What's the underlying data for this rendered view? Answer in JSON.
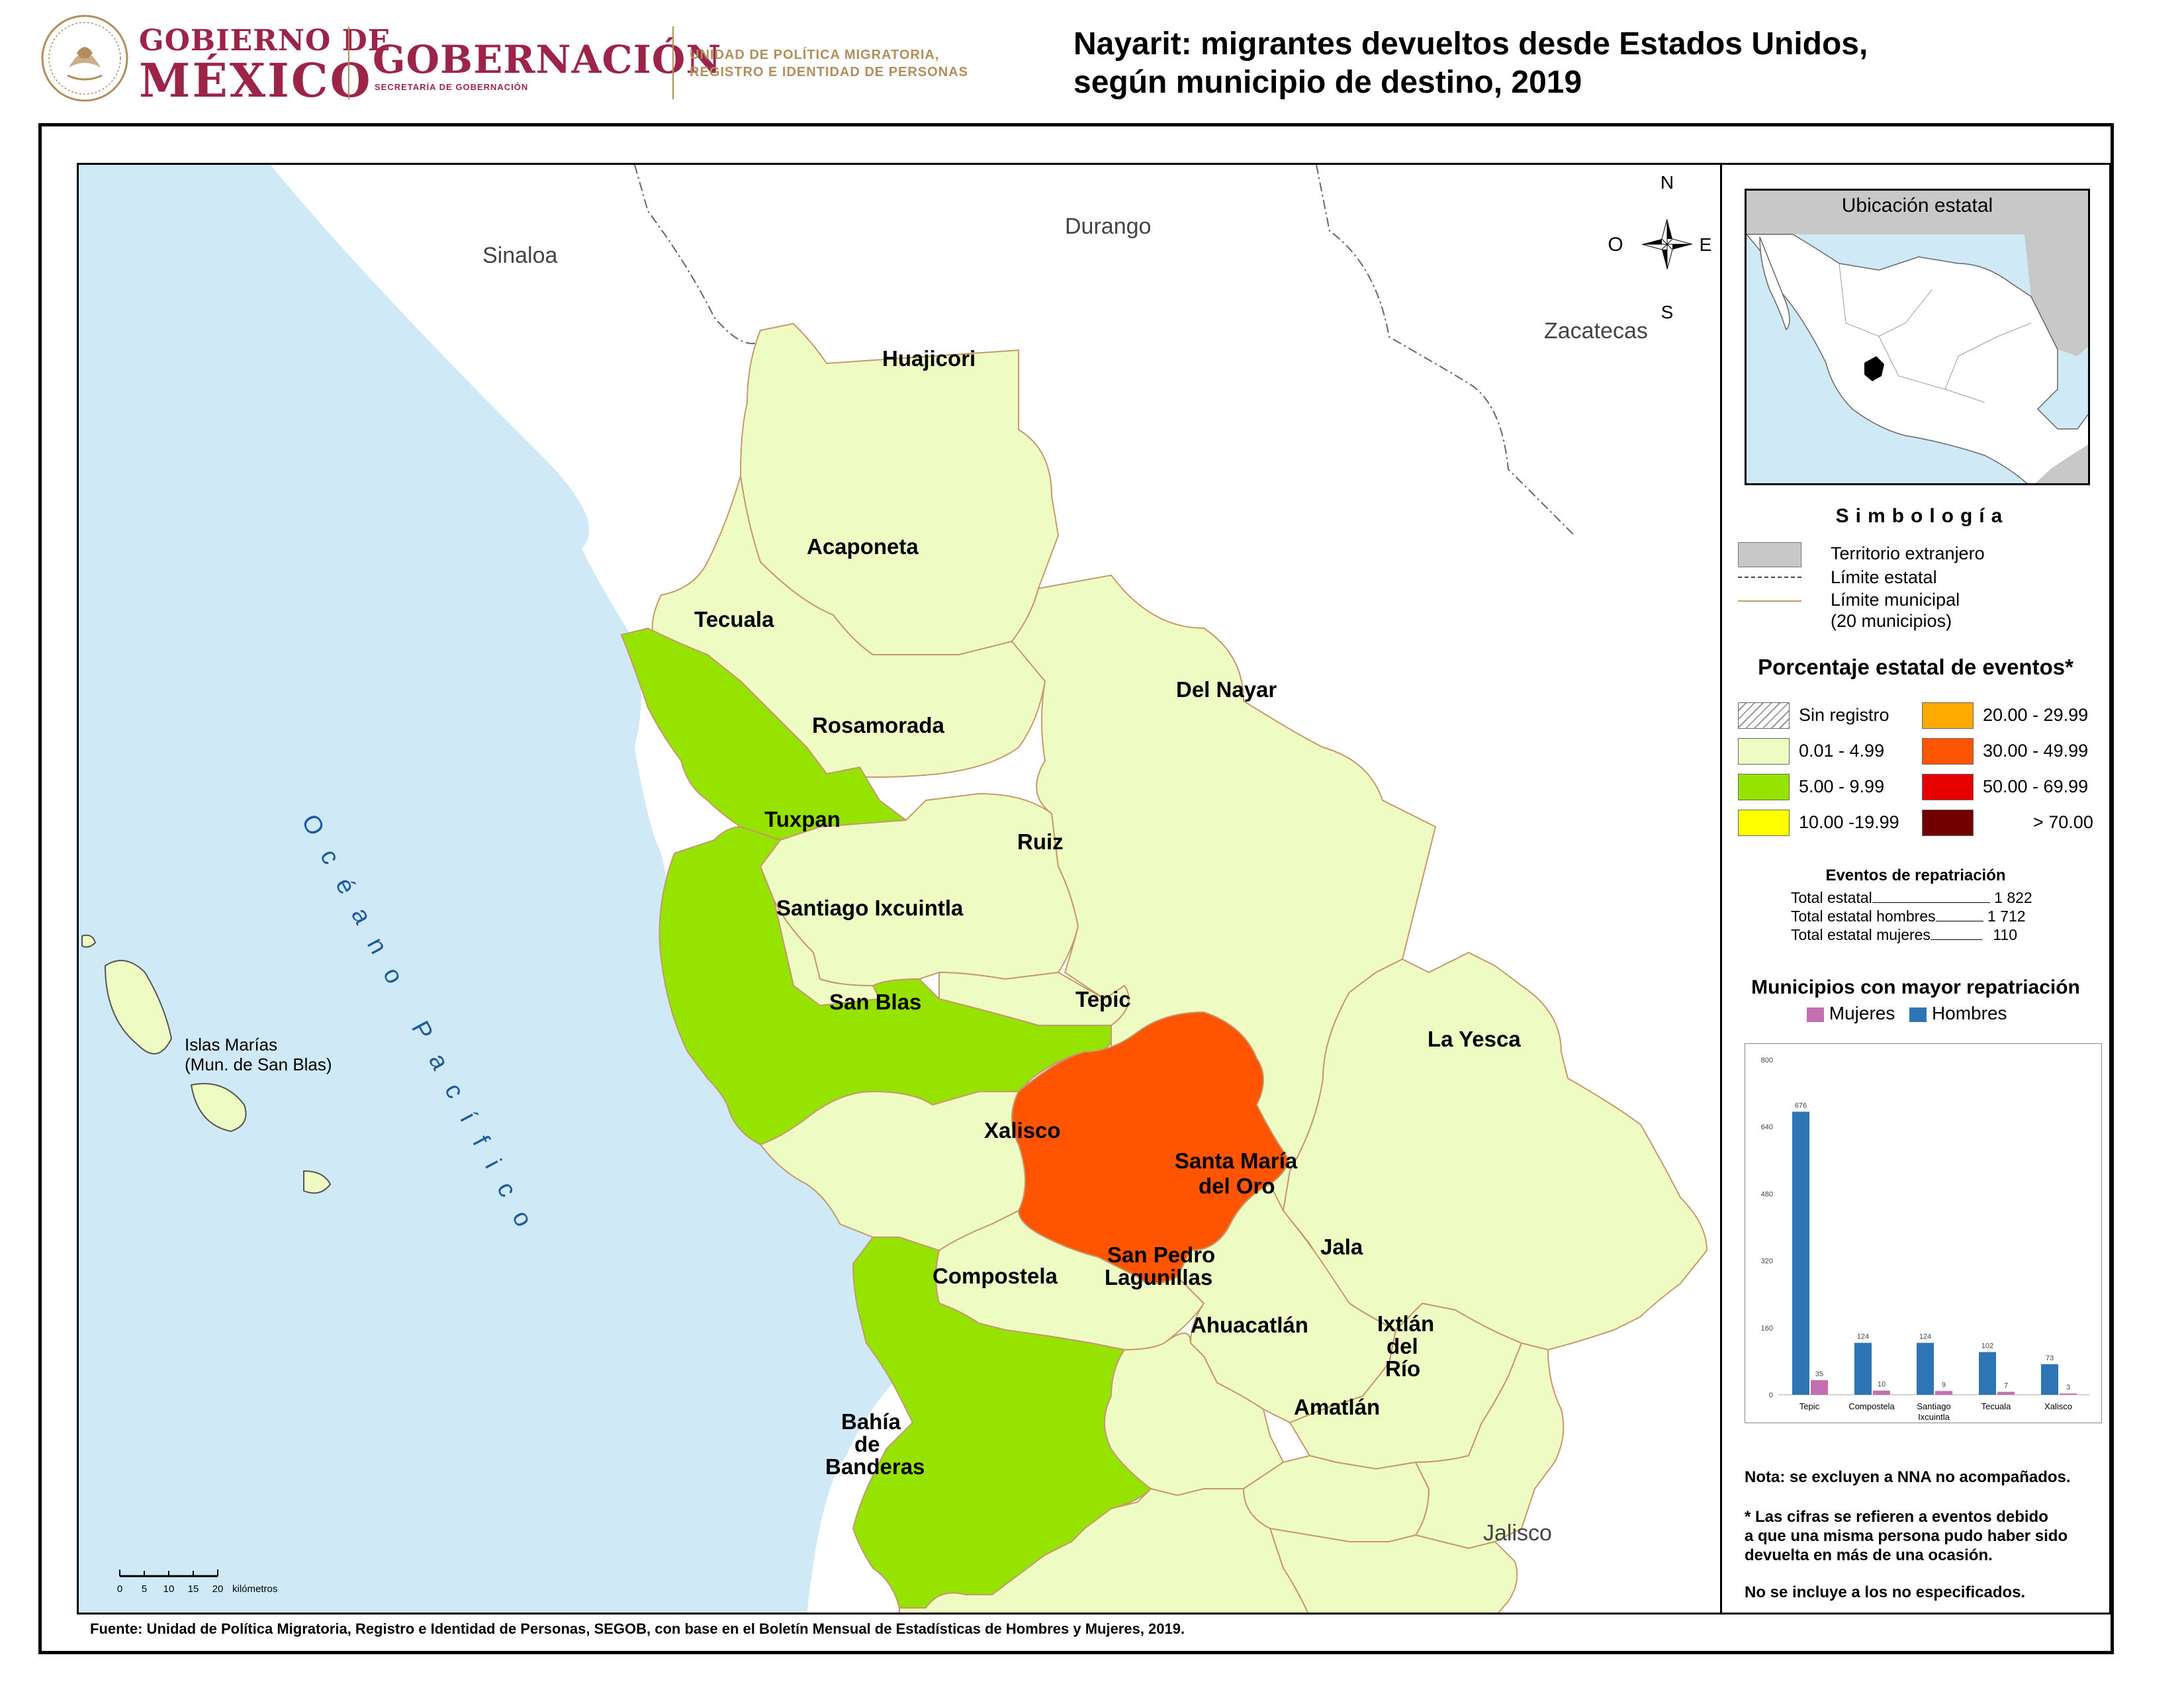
{
  "header": {
    "gob_line1": "GOBIERNO DE",
    "gob_line2": "MÉXICO",
    "gobernacion": "GOBERNACIÓN",
    "secretaria": "SECRETARÍA DE GOBERNACIÓN",
    "unidad_line1": "UNIDAD DE POLÍTICA MIGRATORIA,",
    "unidad_line2": "REGISTRO E IDENTIDAD DE PERSONAS",
    "title_line1": "Nayarit: migrantes devueltos desde Estados Unidos,",
    "title_line2": "según municipio de destino, 2019"
  },
  "map": {
    "north_arrow": {
      "n": "N",
      "s": "S",
      "e": "E",
      "o": "O"
    },
    "states": {
      "sinaloa": "Sinaloa",
      "durango": "Durango",
      "zacatecas": "Zacatecas",
      "jalisco": "Jalisco"
    },
    "ocean_label": "Océano Pacífico",
    "islas_line1": "Islas Marías",
    "islas_line2": "(Mun. de San Blas)",
    "scale": {
      "ticks": [
        "0",
        "5",
        "10",
        "15",
        "20"
      ],
      "unit": "kilómetros"
    },
    "municipios": [
      {
        "name": "Huajicori",
        "class": "0.01 - 4.99"
      },
      {
        "name": "Acaponeta",
        "class": "0.01 - 4.99"
      },
      {
        "name": "Tecuala",
        "class": "5.00 - 9.99"
      },
      {
        "name": "Rosamorada",
        "class": "0.01 - 4.99"
      },
      {
        "name": "Del Nayar",
        "class": "0.01 - 4.99"
      },
      {
        "name": "Tuxpan",
        "class": "0.01 - 4.99"
      },
      {
        "name": "Ruiz",
        "class": "0.01 - 4.99"
      },
      {
        "name": "Santiago Ixcuintla",
        "class": "5.00 - 9.99"
      },
      {
        "name": "San Blas",
        "class": "0.01 - 4.99"
      },
      {
        "name": "Tepic",
        "class": "30.00 - 49.99"
      },
      {
        "name": "La Yesca",
        "class": "0.01 - 4.99"
      },
      {
        "name": "Xalisco",
        "class": "0.01 - 4.99"
      },
      {
        "name": "Santa María del Oro",
        "class": "0.01 - 4.99"
      },
      {
        "name": "Compostela",
        "class": "5.00 - 9.99"
      },
      {
        "name": "San Pedro Lagunillas",
        "class": "0.01 - 4.99"
      },
      {
        "name": "Jala",
        "class": "0.01 - 4.99"
      },
      {
        "name": "Ahuacatlán",
        "class": "0.01 - 4.99"
      },
      {
        "name": "Ixtlán del Río",
        "class": "0.01 - 4.99"
      },
      {
        "name": "Amatlán",
        "class": "0.01 - 4.99"
      },
      {
        "name": "Bahía de Banderas",
        "class": "0.01 - 4.99"
      }
    ],
    "labels": {
      "santa_maria_1": "Santa María",
      "santa_maria_2": "del Oro",
      "san_pedro_1": "San Pedro",
      "san_pedro_2": "Lagunillas",
      "ixtlan_1": "Ixtlán",
      "ixtlan_2": "del",
      "ixtlan_3": "Río",
      "bahia_1": "Bahía",
      "bahia_2": "de",
      "bahia_3": "Banderas"
    }
  },
  "legend": {
    "inset_title": "Ubicación estatal",
    "simbologia_title": "Simbología",
    "simbologia": {
      "extranjero": "Territorio extranjero",
      "estatal": "Límite estatal",
      "municipal_1": "Límite municipal",
      "municipal_2": "(20 municipios)"
    },
    "pct_title": "Porcentaje estatal de eventos*",
    "classes": [
      {
        "label": "Sin registro",
        "color": "hatch"
      },
      {
        "label": "0.01  - 4.99",
        "color": "#eefcc4"
      },
      {
        "label": "5.00  - 9.99",
        "color": "#97e300"
      },
      {
        "label": "10.00 -19.99",
        "color": "#ffff00"
      },
      {
        "label": "20.00 - 29.99",
        "color": "#ffaa00"
      },
      {
        "label": "30.00 - 49.99",
        "color": "#ff5500"
      },
      {
        "label": "50.00 - 69.99",
        "color": "#e60000"
      },
      {
        "label": "> 70.00",
        "color": "#730000"
      }
    ],
    "repatriacion": {
      "title": "Eventos de repatriación",
      "total_label": "Total estatal",
      "total_value": "1 822",
      "hombres_label": "Total estatal hombres",
      "hombres_value": "1 712",
      "mujeres_label": "Total estatal mujeres",
      "mujeres_value": "110"
    },
    "mun_title": "Municipios con mayor repatriación",
    "series_mujeres": "Mujeres",
    "series_hombres": "Hombres",
    "notes": {
      "nota1": "Nota: se excluyen a NNA no acompañados.",
      "nota2_1": "* Las cifras se refieren a eventos debido",
      "nota2_2": "a que una misma persona pudo haber sido",
      "nota2_3": "devuelta en más de una ocasión.",
      "nota3": "No se incluye a los no especificados."
    }
  },
  "colors": {
    "low": "#eefcc4",
    "mid": "#97e300",
    "high": "#ff5500",
    "ocean": "#cfe9f6",
    "hombres": "#2e75b6",
    "mujeres": "#c66fb0",
    "border_municipal": "#c49a6c"
  },
  "chart_data": {
    "type": "bar",
    "categories": [
      "Tepic",
      "Compostela",
      "Santiago Ixcuintla",
      "Tecuala",
      "Xalisco"
    ],
    "category_lines": [
      [
        "Tepic"
      ],
      [
        "Compostela"
      ],
      [
        "Santiago",
        "Ixcuintla"
      ],
      [
        "Tecuala"
      ],
      [
        "Xalisco"
      ]
    ],
    "series": [
      {
        "name": "Hombres",
        "values": [
          676,
          124,
          124,
          102,
          73
        ]
      },
      {
        "name": "Mujeres",
        "values": [
          35,
          10,
          9,
          7,
          3
        ]
      }
    ],
    "ylim": [
      0,
      800
    ],
    "yticks": [
      0,
      160,
      320,
      480,
      640,
      800
    ],
    "legend": "top"
  },
  "source": "Fuente: Unidad de Política Migratoria, Registro e Identidad de Personas, SEGOB, con base en el Boletín Mensual de Estadísticas de Hombres y Mujeres, 2019."
}
